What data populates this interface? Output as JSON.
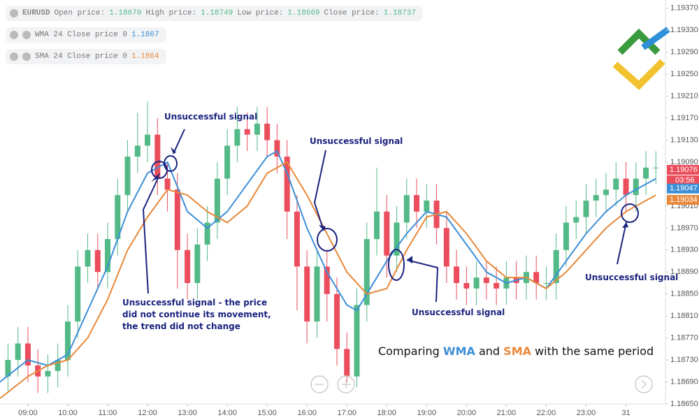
{
  "chart_data": {
    "type": "candlestick",
    "symbol": "EURUSD",
    "header_items": [
      {
        "label": "Open price:",
        "value": "1.18670"
      },
      {
        "label": "High price:",
        "value": "1.18749"
      },
      {
        "label": "Low price:",
        "value": "1.18669"
      },
      {
        "label": "Close price:",
        "value": "1.18737"
      }
    ],
    "legend": [
      {
        "label": "WMA 24 Close price 0",
        "value": "1.1867",
        "color": "#3d8fd6"
      },
      {
        "label": "SMA 24 Close price 0",
        "value": "1.1864",
        "color": "#e8893a"
      }
    ],
    "up_color": "#53b987",
    "down_color": "#eb4d5c",
    "x": [
      8.5,
      8.75,
      9,
      9.25,
      9.5,
      9.75,
      10,
      10.25,
      10.5,
      10.75,
      11,
      11.25,
      11.5,
      11.75,
      12,
      12.25,
      12.5,
      12.75,
      13,
      13.25,
      13.5,
      13.75,
      14,
      14.25,
      14.5,
      14.75,
      15,
      15.25,
      15.5,
      15.75,
      16,
      16.25,
      16.5,
      16.75,
      17,
      17.25,
      17.5,
      17.75,
      18,
      18.25,
      18.5,
      18.75,
      19,
      19.25,
      19.5,
      19.75,
      20,
      20.25,
      20.5,
      20.75,
      21,
      21.25,
      21.5,
      21.75,
      22,
      22.25,
      22.5,
      22.75,
      23,
      23.25,
      23.5,
      23.75,
      24,
      24.25,
      24.5,
      24.75
    ],
    "open": [
      1.187,
      1.1873,
      1.1876,
      1.1872,
      1.187,
      1.1871,
      1.1873,
      1.188,
      1.189,
      1.1893,
      1.1889,
      1.1895,
      1.1903,
      1.191,
      1.1912,
      1.1914,
      1.1906,
      1.1904,
      1.1893,
      1.1887,
      1.1894,
      1.1898,
      1.1906,
      1.1912,
      1.1915,
      1.1914,
      1.1916,
      1.1913,
      1.191,
      1.19,
      1.189,
      1.188,
      1.189,
      1.1885,
      1.1875,
      1.187,
      1.1883,
      1.1895,
      1.19,
      1.1892,
      1.1898,
      1.1903,
      1.19,
      1.1902,
      1.1897,
      1.189,
      1.1887,
      1.1886,
      1.1888,
      1.1887,
      1.1886,
      1.1888,
      1.1887,
      1.1889,
      1.1887,
      1.1887,
      1.1893,
      1.1898,
      1.1899,
      1.1902,
      1.1903,
      1.1904,
      1.1906,
      1.1903,
      1.1906,
      1.1908
    ],
    "high": [
      1.1876,
      1.1879,
      1.1879,
      1.1875,
      1.1874,
      1.1876,
      1.1883,
      1.1893,
      1.1896,
      1.1896,
      1.1898,
      1.1906,
      1.1913,
      1.1918,
      1.192,
      1.1917,
      1.1909,
      1.1907,
      1.1896,
      1.1897,
      1.1901,
      1.1909,
      1.1915,
      1.1919,
      1.1918,
      1.1919,
      1.1919,
      1.1916,
      1.1913,
      1.1903,
      1.1893,
      1.1893,
      1.1893,
      1.1888,
      1.1878,
      1.1886,
      1.1898,
      1.1908,
      1.1903,
      1.1901,
      1.1906,
      1.1906,
      1.1905,
      1.1905,
      1.19,
      1.1893,
      1.189,
      1.1891,
      1.1891,
      1.189,
      1.1891,
      1.1891,
      1.1892,
      1.1892,
      1.189,
      1.1896,
      1.1901,
      1.1902,
      1.1905,
      1.1906,
      1.1907,
      1.1909,
      1.1909,
      1.1909,
      1.1911,
      1.1911
    ],
    "low": [
      1.1867,
      1.187,
      1.1869,
      1.1867,
      1.1867,
      1.1868,
      1.187,
      1.1877,
      1.1887,
      1.1886,
      1.1886,
      1.1892,
      1.19,
      1.1907,
      1.1909,
      1.1903,
      1.19,
      1.1886,
      1.1884,
      1.1884,
      1.1891,
      1.1895,
      1.1903,
      1.1909,
      1.1911,
      1.1911,
      1.191,
      1.1907,
      1.1895,
      1.1882,
      1.1876,
      1.1877,
      1.188,
      1.1872,
      1.1869,
      1.1868,
      1.188,
      1.1892,
      1.1888,
      1.1889,
      1.1895,
      1.1897,
      1.1897,
      1.1894,
      1.1887,
      1.1884,
      1.1883,
      1.1883,
      1.1884,
      1.1883,
      1.1883,
      1.1884,
      1.1884,
      1.1884,
      1.1884,
      1.1884,
      1.189,
      1.1895,
      1.1896,
      1.1899,
      1.19,
      1.1901,
      1.19,
      1.19,
      1.1903,
      1.1905
    ],
    "close": [
      1.1873,
      1.1876,
      1.1872,
      1.187,
      1.1871,
      1.1873,
      1.188,
      1.189,
      1.1893,
      1.1889,
      1.1895,
      1.1903,
      1.191,
      1.1912,
      1.1914,
      1.1906,
      1.1904,
      1.1893,
      1.1887,
      1.1894,
      1.1898,
      1.1906,
      1.1912,
      1.1915,
      1.1914,
      1.1916,
      1.1913,
      1.191,
      1.19,
      1.189,
      1.188,
      1.189,
      1.1885,
      1.1875,
      1.187,
      1.1883,
      1.1895,
      1.19,
      1.1892,
      1.1898,
      1.1903,
      1.19,
      1.1902,
      1.1897,
      1.189,
      1.1887,
      1.1886,
      1.1888,
      1.1887,
      1.1886,
      1.1888,
      1.1887,
      1.1889,
      1.1887,
      1.1887,
      1.1893,
      1.1898,
      1.1899,
      1.1902,
      1.1903,
      1.1904,
      1.1906,
      1.1903,
      1.1906,
      1.1908,
      1.1908
    ],
    "series": [
      {
        "name": "WMA",
        "color": "#3d8fd6",
        "x": [
          8.3,
          9,
          9.5,
          10,
          10.5,
          11,
          11.5,
          12,
          12.5,
          13,
          13.5,
          14,
          14.5,
          15,
          15.25,
          15.5,
          16,
          16.5,
          17,
          17.25,
          17.5,
          18,
          18.5,
          19,
          19.5,
          20,
          20.5,
          21,
          21.5,
          22,
          22.5,
          23,
          23.5,
          24,
          24.5,
          24.75
        ],
        "values": [
          1.1869,
          1.1873,
          1.1872,
          1.1874,
          1.1882,
          1.189,
          1.19,
          1.1907,
          1.1909,
          1.19,
          1.1897,
          1.19,
          1.1905,
          1.191,
          1.1911,
          1.1907,
          1.1897,
          1.1889,
          1.1883,
          1.1882,
          1.1885,
          1.1891,
          1.1896,
          1.19,
          1.1899,
          1.1894,
          1.1889,
          1.1887,
          1.1888,
          1.1886,
          1.1891,
          1.1896,
          1.19,
          1.1903,
          1.1905,
          1.1906
        ]
      },
      {
        "name": "SMA",
        "color": "#e8893a",
        "x": [
          8.3,
          9,
          9.5,
          10,
          10.5,
          11,
          11.5,
          12,
          12.5,
          13,
          13.5,
          14,
          14.5,
          15,
          15.5,
          16,
          16.5,
          17,
          17.5,
          18,
          18.5,
          19,
          19.5,
          20,
          20.5,
          21,
          21.5,
          22,
          22.5,
          23,
          23.5,
          24,
          24.5,
          24.75
        ],
        "values": [
          1.1866,
          1.187,
          1.1872,
          1.1873,
          1.1877,
          1.1884,
          1.1893,
          1.1899,
          1.1904,
          1.1903,
          1.19,
          1.1898,
          1.1901,
          1.1907,
          1.1909,
          1.1903,
          1.1896,
          1.1889,
          1.1885,
          1.1886,
          1.1893,
          1.1899,
          1.19,
          1.1896,
          1.1891,
          1.1888,
          1.1888,
          1.1886,
          1.1889,
          1.1893,
          1.1897,
          1.19,
          1.1902,
          1.1903
        ]
      }
    ],
    "xlim": [
      8.3,
      24.99
    ],
    "ylim": [
      1.1865,
      1.19385
    ],
    "xticks": [
      {
        "value": 9,
        "label": "09:00"
      },
      {
        "value": 10,
        "label": "10:00"
      },
      {
        "value": 11,
        "label": "11:00"
      },
      {
        "value": 12,
        "label": "12:00"
      },
      {
        "value": 13,
        "label": "13:00"
      },
      {
        "value": 14,
        "label": "14:00"
      },
      {
        "value": 15,
        "label": "15:00"
      },
      {
        "value": 16,
        "label": "16:00"
      },
      {
        "value": 17,
        "label": "17:00"
      },
      {
        "value": 18,
        "label": "18:00"
      },
      {
        "value": 19,
        "label": "19:00"
      },
      {
        "value": 20,
        "label": "20:00"
      },
      {
        "value": 21,
        "label": "21:00"
      },
      {
        "value": 22,
        "label": "22:00"
      },
      {
        "value": 23,
        "label": "23:00"
      },
      {
        "value": 24,
        "label": "31"
      }
    ],
    "yticks": [
      {
        "value": 1.1937,
        "label": "1.19370"
      },
      {
        "value": 1.1933,
        "label": "1.19330"
      },
      {
        "value": 1.1929,
        "label": "1.19290"
      },
      {
        "value": 1.1925,
        "label": "1.19250"
      },
      {
        "value": 1.1921,
        "label": "1.19210"
      },
      {
        "value": 1.1917,
        "label": "1.19170"
      },
      {
        "value": 1.1913,
        "label": "1.19130"
      },
      {
        "value": 1.1909,
        "label": "1.19090"
      },
      {
        "value": 1.1905,
        "label": "1.19050"
      },
      {
        "value": 1.1901,
        "label": "1.19010"
      },
      {
        "value": 1.1897,
        "label": "1.18970"
      },
      {
        "value": 1.1893,
        "label": "1.18930"
      },
      {
        "value": 1.1889,
        "label": "1.18890"
      },
      {
        "value": 1.1885,
        "label": "1.18850"
      },
      {
        "value": 1.1881,
        "label": "1.18810"
      },
      {
        "value": 1.1877,
        "label": "1.18770"
      },
      {
        "value": 1.1873,
        "label": "1.18730"
      },
      {
        "value": 1.1869,
        "label": "1.18690"
      },
      {
        "value": 1.1865,
        "label": "1.18650"
      }
    ],
    "price_tags": [
      {
        "value": 1.19076,
        "label": "1.19076",
        "color": "#eb4d5c"
      },
      {
        "value": 1.19047,
        "label": "1.19047",
        "color": "#3d8fd6"
      },
      {
        "value": 1.19034,
        "label": "1.19034",
        "color": "#e8893a"
      }
    ],
    "countdown": "03:56",
    "annotations": [
      "Unsuccessful signal",
      "Unsuccessful signal",
      "Unsuccessful signal - the price",
      "did not continue its movement,",
      "the trend did not change",
      "Unsuccessful signal",
      "Unsuccessful signal"
    ],
    "caption": [
      "Comparing",
      "and",
      "with the same period"
    ]
  }
}
